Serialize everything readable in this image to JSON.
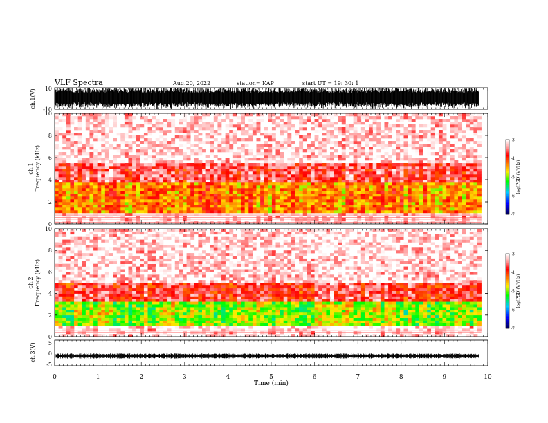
{
  "header": {
    "title": "VLF Spectra",
    "date": "Aug.20, 2022",
    "station": "station= KAP",
    "start": "start  UT  =   19: 30: 1"
  },
  "colors": {
    "background": "#ffffff",
    "axis": "#000000",
    "colormap": [
      "#ffffff",
      "#ff9090",
      "#ff0000",
      "#ff7a00",
      "#ffe000",
      "#00ff00",
      "#00c8ff",
      "#0000ff",
      "#000050"
    ]
  },
  "chart_data": [
    {
      "id": "ch1-waveform",
      "type": "line",
      "ylabel": "ch.1(V)",
      "ylim": [
        -10,
        10
      ],
      "yticks": [
        "10",
        "-10"
      ],
      "xlim": [
        0,
        10
      ],
      "note_values": "dense noise filling almost full range"
    },
    {
      "id": "ch1-spectrogram",
      "type": "heatmap",
      "ylabel": "ch.1\nFrequency (kHz)",
      "ylabel_top": "ch.1",
      "ylabel_bottom": "Frequency (kHz)",
      "ylim": [
        0,
        10
      ],
      "yticks": [
        "0",
        "2",
        "4",
        "6",
        "8",
        "10"
      ],
      "xlim": [
        0,
        9.85
      ],
      "colorbar": {
        "label": "log(PSD)(V²/Hz)",
        "range": [
          -7,
          -3
        ],
        "ticks": [
          "-3",
          "-4",
          "-5",
          "-6",
          "-7"
        ]
      },
      "bands": [
        {
          "fmin": 1.0,
          "fmax": 3.6,
          "level": -4.3
        },
        {
          "fmin": 3.6,
          "fmax": 5.5,
          "level": -3.6
        },
        {
          "fmin": 5.5,
          "fmax": 10,
          "level": -3.1
        }
      ]
    },
    {
      "id": "ch2-spectrogram",
      "type": "heatmap",
      "ylabel_top": "ch.2",
      "ylabel_bottom": "Frequency (kHz)",
      "ylim": [
        0,
        10
      ],
      "yticks": [
        "0",
        "2",
        "4",
        "6",
        "8",
        "10"
      ],
      "xlim": [
        0,
        9.85
      ],
      "colorbar": {
        "label": "log(PSD)(V²/Hz)",
        "range": [
          -7,
          -3
        ],
        "ticks": [
          "-3",
          "-4",
          "-5",
          "-6",
          "-7"
        ]
      },
      "bands": [
        {
          "fmin": 0.5,
          "fmax": 3.2,
          "level": -4.9
        },
        {
          "fmin": 3.2,
          "fmax": 5.0,
          "level": -3.7
        },
        {
          "fmin": 5.0,
          "fmax": 10,
          "level": -3.1
        }
      ]
    },
    {
      "id": "ch3-waveform",
      "type": "line",
      "ylabel": "ch.3(V)",
      "ylim": [
        -5,
        5
      ],
      "yticks": [
        "5",
        "0",
        "-5"
      ],
      "xlim": [
        0,
        10
      ],
      "approx_level": -1.2
    }
  ],
  "xaxis": {
    "label": "Time  (min)",
    "ticks": [
      "0",
      "1",
      "2",
      "3",
      "4",
      "5",
      "6",
      "7",
      "8",
      "9",
      "10"
    ]
  }
}
